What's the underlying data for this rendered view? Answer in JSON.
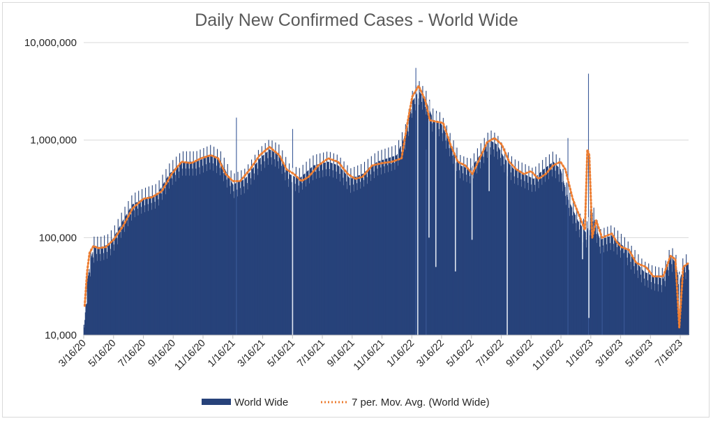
{
  "chart_data": {
    "type": "bar",
    "title": "Daily New Confirmed Cases - World Wide",
    "y_scale": "log",
    "ylim": [
      10000,
      10000000
    ],
    "y_ticks": [
      {
        "value": 10000,
        "label": "10,000"
      },
      {
        "value": 100000,
        "label": "100,000"
      },
      {
        "value": 1000000,
        "label": "1,000,000"
      },
      {
        "value": 10000000,
        "label": "10,000,000"
      }
    ],
    "x_range_days": [
      0,
      1237
    ],
    "x_tick_every_days": 61,
    "x_tick_labels": [
      "3/16/20",
      "5/16/20",
      "7/16/20",
      "9/16/20",
      "11/16/20",
      "1/16/21",
      "3/16/21",
      "5/16/21",
      "7/16/21",
      "9/16/21",
      "11/16/21",
      "1/16/22",
      "3/16/22",
      "5/16/22",
      "7/16/22",
      "9/16/22",
      "11/16/22",
      "1/16/23",
      "3/16/23",
      "5/16/23",
      "7/16/23"
    ],
    "series": [
      {
        "name": "World Wide",
        "kind": "bar",
        "color": "#27427a",
        "trend": [
          [
            0,
            10000
          ],
          [
            7,
            35000
          ],
          [
            14,
            60000
          ],
          [
            21,
            80000
          ],
          [
            35,
            80000
          ],
          [
            50,
            85000
          ],
          [
            61,
            100000
          ],
          [
            80,
            150000
          ],
          [
            100,
            220000
          ],
          [
            122,
            250000
          ],
          [
            150,
            280000
          ],
          [
            175,
            450000
          ],
          [
            200,
            600000
          ],
          [
            230,
            600000
          ],
          [
            260,
            700000
          ],
          [
            280,
            600000
          ],
          [
            305,
            350000
          ],
          [
            330,
            400000
          ],
          [
            360,
            650000
          ],
          [
            380,
            800000
          ],
          [
            400,
            700000
          ],
          [
            420,
            450000
          ],
          [
            440,
            400000
          ],
          [
            470,
            550000
          ],
          [
            500,
            600000
          ],
          [
            520,
            550000
          ],
          [
            545,
            400000
          ],
          [
            570,
            450000
          ],
          [
            600,
            600000
          ],
          [
            640,
            700000
          ],
          [
            660,
            1200000
          ],
          [
            672,
            2500000
          ],
          [
            685,
            3200000
          ],
          [
            700,
            2500000
          ],
          [
            715,
            1600000
          ],
          [
            730,
            1500000
          ],
          [
            750,
            900000
          ],
          [
            770,
            550000
          ],
          [
            790,
            500000
          ],
          [
            810,
            700000
          ],
          [
            830,
            1000000
          ],
          [
            845,
            900000
          ],
          [
            860,
            650000
          ],
          [
            880,
            500000
          ],
          [
            900,
            450000
          ],
          [
            920,
            400000
          ],
          [
            940,
            500000
          ],
          [
            960,
            600000
          ],
          [
            975,
            500000
          ],
          [
            990,
            250000
          ],
          [
            1010,
            150000
          ],
          [
            1028,
            110000
          ],
          [
            1040,
            180000
          ],
          [
            1055,
            95000
          ],
          [
            1080,
            105000
          ],
          [
            1105,
            80000
          ],
          [
            1125,
            60000
          ],
          [
            1145,
            45000
          ],
          [
            1165,
            40000
          ],
          [
            1185,
            38000
          ],
          [
            1200,
            65000
          ],
          [
            1210,
            55000
          ],
          [
            1218,
            35000
          ],
          [
            1226,
            50000
          ],
          [
            1237,
            55000
          ]
        ],
        "spikes": [
          [
            312,
            1700000
          ],
          [
            427,
            1300000
          ],
          [
            679,
            5500000
          ],
          [
            700,
            800000
          ],
          [
            990,
            1050000
          ],
          [
            1032,
            4800000
          ],
          [
            1060,
            80000
          ],
          [
            1105,
            70000
          ]
        ],
        "dips": [
          [
            427,
            10000
          ],
          [
            683,
            10000
          ],
          [
            706,
            100000
          ],
          [
            720,
            50000
          ],
          [
            760,
            45000
          ],
          [
            794,
            95000
          ],
          [
            829,
            300000
          ],
          [
            866,
            10000
          ],
          [
            1020,
            60000
          ],
          [
            1033,
            15000
          ],
          [
            1218,
            12000
          ]
        ]
      },
      {
        "name": "7 per. Mov. Avg. (World Wide)",
        "kind": "line",
        "style": "dotted",
        "color": "#ed7d31",
        "points": [
          [
            2,
            20000
          ],
          [
            7,
            45000
          ],
          [
            12,
            70000
          ],
          [
            20,
            82000
          ],
          [
            30,
            78000
          ],
          [
            45,
            80000
          ],
          [
            61,
            95000
          ],
          [
            80,
            130000
          ],
          [
            100,
            200000
          ],
          [
            122,
            250000
          ],
          [
            140,
            260000
          ],
          [
            160,
            300000
          ],
          [
            180,
            450000
          ],
          [
            200,
            600000
          ],
          [
            220,
            580000
          ],
          [
            240,
            650000
          ],
          [
            260,
            700000
          ],
          [
            275,
            650000
          ],
          [
            290,
            450000
          ],
          [
            305,
            380000
          ],
          [
            320,
            380000
          ],
          [
            340,
            500000
          ],
          [
            360,
            700000
          ],
          [
            380,
            850000
          ],
          [
            400,
            700000
          ],
          [
            415,
            500000
          ],
          [
            430,
            450000
          ],
          [
            445,
            380000
          ],
          [
            460,
            420000
          ],
          [
            480,
            550000
          ],
          [
            500,
            650000
          ],
          [
            520,
            600000
          ],
          [
            540,
            450000
          ],
          [
            555,
            400000
          ],
          [
            570,
            420000
          ],
          [
            590,
            550000
          ],
          [
            610,
            580000
          ],
          [
            630,
            600000
          ],
          [
            650,
            650000
          ],
          [
            662,
            1500000
          ],
          [
            672,
            2800000
          ],
          [
            685,
            3600000
          ],
          [
            698,
            2600000
          ],
          [
            708,
            1600000
          ],
          [
            720,
            1550000
          ],
          [
            735,
            1500000
          ],
          [
            750,
            900000
          ],
          [
            765,
            600000
          ],
          [
            780,
            550000
          ],
          [
            795,
            450000
          ],
          [
            810,
            650000
          ],
          [
            825,
            950000
          ],
          [
            840,
            1050000
          ],
          [
            855,
            900000
          ],
          [
            870,
            600000
          ],
          [
            885,
            500000
          ],
          [
            900,
            450000
          ],
          [
            915,
            480000
          ],
          [
            930,
            400000
          ],
          [
            945,
            450000
          ],
          [
            960,
            550000
          ],
          [
            975,
            600000
          ],
          [
            985,
            500000
          ],
          [
            1000,
            250000
          ],
          [
            1015,
            160000
          ],
          [
            1025,
            120000
          ],
          [
            1030,
            800000
          ],
          [
            1034,
            700000
          ],
          [
            1040,
            100000
          ],
          [
            1048,
            150000
          ],
          [
            1060,
            100000
          ],
          [
            1080,
            110000
          ],
          [
            1090,
            90000
          ],
          [
            1100,
            80000
          ],
          [
            1115,
            75000
          ],
          [
            1130,
            55000
          ],
          [
            1150,
            50000
          ],
          [
            1165,
            40000
          ],
          [
            1185,
            40000
          ],
          [
            1200,
            65000
          ],
          [
            1210,
            60000
          ],
          [
            1218,
            12000
          ],
          [
            1226,
            50000
          ],
          [
            1237,
            55000
          ]
        ]
      }
    ]
  },
  "legend": {
    "bar_label": "World Wide",
    "line_label": "7 per. Mov. Avg. (World Wide)"
  }
}
